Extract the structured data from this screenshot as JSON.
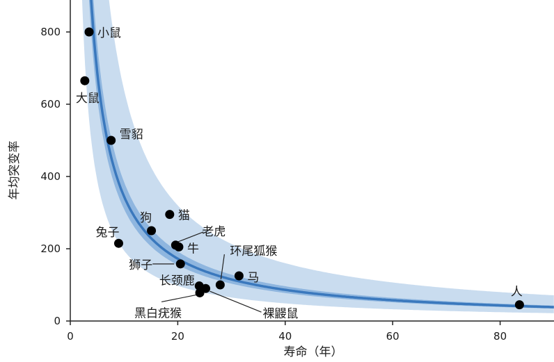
{
  "chart_data": {
    "type": "scatter",
    "xlabel": "寿命（年）",
    "ylabel": "年均突变率",
    "xlim": [
      0,
      90
    ],
    "ylim": [
      0,
      880
    ],
    "x_ticks": [
      0,
      20,
      40,
      60,
      80
    ],
    "y_ticks": [
      0,
      200,
      400,
      600,
      800
    ],
    "grid": false,
    "colors": {
      "points": "#000000",
      "fit_line": "#3a78bd",
      "inner_band": "#8fb6df",
      "outer_band": "#c9dcef"
    },
    "fit": {
      "form": "y = k / x",
      "k": 3450,
      "inner_k": [
        3100,
        3850
      ],
      "outer_k": [
        1950,
        6400
      ]
    },
    "points": [
      {
        "label": "小鼠",
        "x": 3.5,
        "y": 800
      },
      {
        "label": "大鼠",
        "x": 2.7,
        "y": 665
      },
      {
        "label": "雪貂",
        "x": 7.6,
        "y": 500
      },
      {
        "label": "猫",
        "x": 18.5,
        "y": 295
      },
      {
        "label": "狗",
        "x": 15.1,
        "y": 250
      },
      {
        "label": "兔子",
        "x": 9.0,
        "y": 215
      },
      {
        "label": "老虎",
        "x": 19.6,
        "y": 210
      },
      {
        "label": "牛",
        "x": 20.2,
        "y": 205
      },
      {
        "label": "狮子",
        "x": 20.5,
        "y": 158
      },
      {
        "label": "马",
        "x": 31.4,
        "y": 125
      },
      {
        "label": "环尾狐猴",
        "x": 27.9,
        "y": 100
      },
      {
        "label": "长颈鹿",
        "x": 24.0,
        "y": 97
      },
      {
        "label": "裸鼹鼠",
        "x": 25.2,
        "y": 90
      },
      {
        "label": "黑白疣猴",
        "x": 24.1,
        "y": 78
      },
      {
        "label": "人",
        "x": 83.6,
        "y": 45
      }
    ]
  }
}
